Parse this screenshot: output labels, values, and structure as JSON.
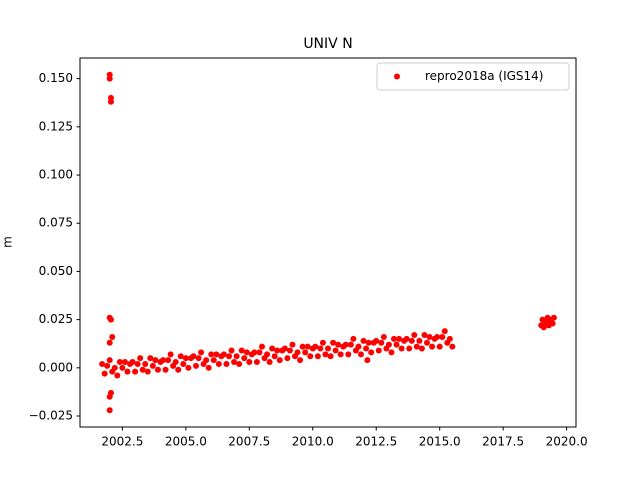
{
  "chart_data": {
    "type": "scatter",
    "title": "UNIV N",
    "y_label": "m",
    "legend": "upper right",
    "xlim": [
      2000.83,
      2020.37
    ],
    "ylim": [
      -0.0307,
      0.1607
    ],
    "xticks": [
      2002.5,
      {
        "value": 2005,
        "label": "2005.0"
      },
      2007.5,
      {
        "value": 2010,
        "label": "2010.0"
      },
      2012.5,
      {
        "value": 2015,
        "label": "2015.0"
      },
      2017.5,
      {
        "value": 2020,
        "label": "2020.0"
      }
    ],
    "yticks": [
      {
        "value": -0.025,
        "label": "−0.025"
      },
      {
        "value": 0,
        "label": "0.000"
      },
      0.025,
      {
        "value": 0.05,
        "label": "0.050"
      },
      0.075,
      {
        "value": 0.1,
        "label": "0.100"
      },
      0.125,
      {
        "value": 0.15,
        "label": "0.150"
      }
    ],
    "series": [
      {
        "name": "repro2018a (IGS14)",
        "color": "#ff0000",
        "x": [
          2001.7,
          2001.8,
          2001.9,
          2002.0,
          2002.1,
          2002.2,
          2002.3,
          2002.4,
          2002.5,
          2002.6,
          2002.7,
          2002.8,
          2002.9,
          2003.0,
          2003.1,
          2003.2,
          2003.3,
          2003.4,
          2003.5,
          2003.6,
          2003.7,
          2003.8,
          2003.9,
          2004.0,
          2004.1,
          2004.2,
          2004.3,
          2004.4,
          2004.5,
          2004.6,
          2004.7,
          2004.8,
          2004.9,
          2005.0,
          2005.1,
          2005.2,
          2005.3,
          2005.4,
          2005.5,
          2005.6,
          2005.7,
          2005.8,
          2005.9,
          2006.0,
          2006.1,
          2006.2,
          2006.3,
          2006.4,
          2006.5,
          2006.6,
          2006.7,
          2006.8,
          2006.9,
          2007.0,
          2007.1,
          2007.2,
          2007.3,
          2007.4,
          2007.5,
          2007.6,
          2007.7,
          2007.8,
          2007.9,
          2008.0,
          2008.1,
          2008.2,
          2008.3,
          2008.4,
          2008.5,
          2008.6,
          2008.7,
          2008.8,
          2008.9,
          2009.0,
          2009.1,
          2009.2,
          2009.3,
          2009.4,
          2009.5,
          2009.6,
          2009.7,
          2009.8,
          2009.9,
          2010.0,
          2010.1,
          2010.2,
          2010.3,
          2010.4,
          2010.5,
          2010.6,
          2010.7,
          2010.8,
          2010.9,
          2011.0,
          2011.1,
          2011.2,
          2011.3,
          2011.4,
          2011.5,
          2011.6,
          2011.7,
          2011.8,
          2011.9,
          2012.0,
          2012.1,
          2012.2,
          2012.3,
          2012.4,
          2012.5,
          2012.6,
          2012.7,
          2012.8,
          2012.9,
          2013.0,
          2013.1,
          2013.2,
          2013.3,
          2013.4,
          2013.5,
          2013.6,
          2013.7,
          2013.8,
          2013.9,
          2014.0,
          2014.1,
          2014.2,
          2014.3,
          2014.4,
          2014.5,
          2014.6,
          2014.7,
          2014.8,
          2014.9,
          2015.0,
          2015.1,
          2015.2,
          2015.3,
          2015.4,
          2015.5,
          2002.0,
          2002.0,
          2002.05,
          2002.05,
          2002.0,
          2002.05,
          2002.1,
          2002.0,
          2002.05,
          2002.0,
          2002.0,
          2012.15,
          2019.0,
          2019.05,
          2019.1,
          2019.15,
          2019.2,
          2019.25,
          2019.3,
          2019.35,
          2019.4,
          2019.45,
          2019.5
        ],
        "values": [
          0.002,
          -0.003,
          0.001,
          0.004,
          -0.002,
          0.0,
          -0.004,
          0.003,
          0.0,
          0.003,
          -0.002,
          0.002,
          0.003,
          -0.002,
          0.002,
          0.005,
          -0.001,
          0.002,
          -0.002,
          0.005,
          0.001,
          0.004,
          -0.001,
          0.003,
          0.004,
          -0.001,
          0.004,
          0.007,
          0.001,
          0.003,
          -0.001,
          0.006,
          0.002,
          0.005,
          0.0,
          0.005,
          0.006,
          0.001,
          0.005,
          0.008,
          0.002,
          0.004,
          0.0,
          0.007,
          0.004,
          0.007,
          0.002,
          0.006,
          0.007,
          0.002,
          0.006,
          0.009,
          0.003,
          0.006,
          0.002,
          0.009,
          0.005,
          0.008,
          0.003,
          0.007,
          0.008,
          0.003,
          0.008,
          0.011,
          0.005,
          0.007,
          0.003,
          0.01,
          0.006,
          0.009,
          0.004,
          0.009,
          0.01,
          0.005,
          0.009,
          0.012,
          0.006,
          0.008,
          0.004,
          0.011,
          0.008,
          0.011,
          0.006,
          0.01,
          0.011,
          0.006,
          0.01,
          0.013,
          0.007,
          0.01,
          0.006,
          0.013,
          0.009,
          0.012,
          0.007,
          0.011,
          0.012,
          0.007,
          0.012,
          0.015,
          0.009,
          0.011,
          0.007,
          0.014,
          0.01,
          0.013,
          0.008,
          0.013,
          0.014,
          0.009,
          0.013,
          0.016,
          0.01,
          0.012,
          0.008,
          0.015,
          0.012,
          0.015,
          0.01,
          0.014,
          0.015,
          0.01,
          0.014,
          0.017,
          0.011,
          0.014,
          0.01,
          0.017,
          0.013,
          0.016,
          0.011,
          0.015,
          0.016,
          0.011,
          0.016,
          0.019,
          0.013,
          0.015,
          0.011,
          0.152,
          0.15,
          0.14,
          0.138,
          0.026,
          0.025,
          0.016,
          0.013,
          -0.013,
          -0.015,
          -0.022,
          0.004,
          0.022,
          0.025,
          0.021,
          0.024,
          0.023,
          0.026,
          0.022,
          0.024,
          0.025,
          0.023,
          0.026
        ]
      }
    ]
  }
}
